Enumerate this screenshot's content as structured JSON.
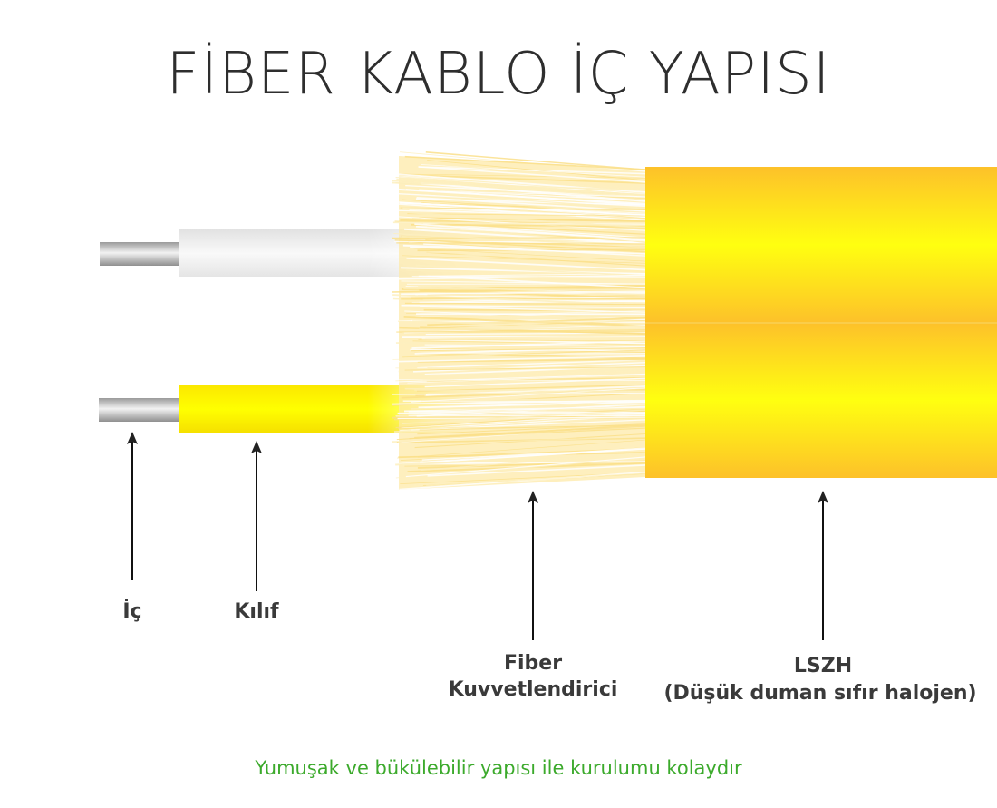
{
  "title": "FİBER KABLO İÇ YAPISI",
  "labels": {
    "core": "İç",
    "sheath": "Kılıf",
    "strength_line1": "Fiber",
    "strength_line2": "Kuvvetlendirici",
    "lszh_line1": "LSZH",
    "lszh_line2": "(Düşük duman sıfır halojen)"
  },
  "footnote": "Yumuşak ve bükülebilir yapısı ile kurulumu kolaydır",
  "colors": {
    "title": "#2e2e2e",
    "label": "#3a3a3a",
    "footnote": "#3caa2c",
    "lszh_outer": "#fdc12a",
    "lszh_center": "#ffff10",
    "yellow_jacket": "#ffff00",
    "white_jacket": "#eeeeee",
    "fiber": "#fde9a8"
  }
}
